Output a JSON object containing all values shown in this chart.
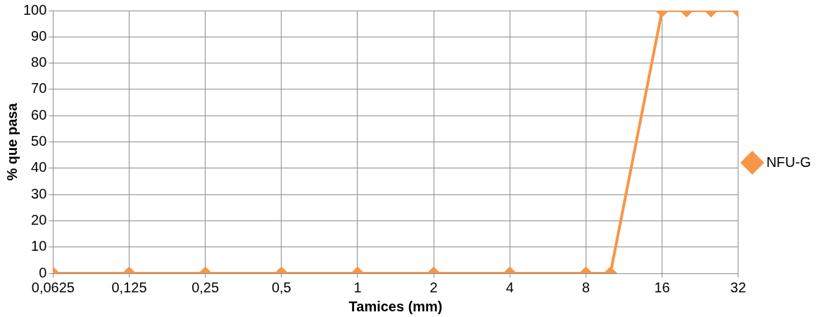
{
  "chart_data": {
    "type": "line",
    "xlabel": "Tamices (mm)",
    "ylabel": "% que pasa",
    "x": [
      0.0625,
      0.125,
      0.25,
      0.5,
      1,
      2,
      4,
      8,
      10,
      16,
      20,
      25,
      32
    ],
    "series": [
      {
        "name": "NFU-G",
        "color": "#f79646",
        "values": [
          0,
          0,
          0,
          0,
          0,
          0,
          0,
          0,
          0,
          100,
          100,
          100,
          100
        ]
      }
    ],
    "log": "x",
    "xlim": [
      0.0625,
      32
    ],
    "xticks": [
      {
        "value": 0.0625,
        "label": "0,0625"
      },
      {
        "value": 0.125,
        "label": "0,125"
      },
      {
        "value": 0.25,
        "label": "0,25"
      },
      {
        "value": 0.5,
        "label": "0,5"
      },
      1,
      2,
      4,
      8,
      16,
      32
    ],
    "ylim": [
      0,
      100
    ],
    "yticks": [
      0,
      10,
      20,
      30,
      40,
      50,
      60,
      70,
      80,
      90,
      100
    ],
    "grid": true,
    "legend": "right",
    "marker": "diamond",
    "line_style": "solid"
  }
}
